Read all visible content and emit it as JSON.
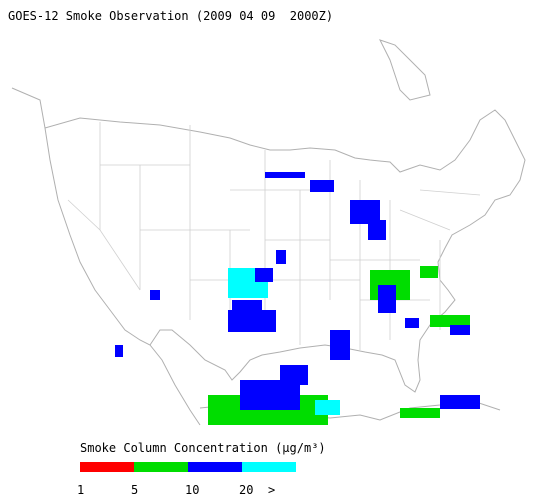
{
  "title": "GOES-12 Smoke Observation (2009 04 09  2000Z)",
  "legend": {
    "title": "Smoke Column Concentration (μg/m³)",
    "colors": [
      "#ff0000",
      "#00dd00",
      "#0000ff",
      "#00ffff"
    ],
    "labels": [
      "1",
      "5",
      "10",
      "20",
      ">"
    ]
  }
}
